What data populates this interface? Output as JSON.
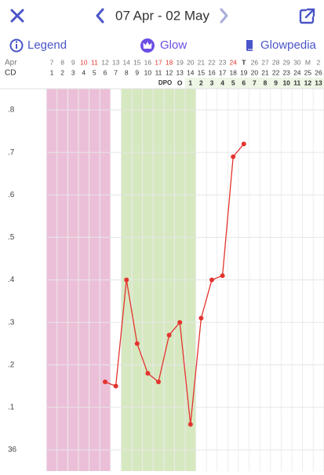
{
  "header": {
    "date_range": "07 Apr - 02 May"
  },
  "tabs": [
    "Legend",
    "Glow",
    "Glowpedia"
  ],
  "chart_data": {
    "type": "line",
    "month_label": "Apr",
    "cycle_day_label": "CD",
    "dpo_label": "DPO",
    "categories": [
      "7",
      "8",
      "9",
      "10",
      "11",
      "12",
      "13",
      "14",
      "15",
      "16",
      "17",
      "18",
      "19",
      "20",
      "21",
      "22",
      "23",
      "24",
      "T",
      "26",
      "27",
      "28",
      "29",
      "30",
      "M",
      "2"
    ],
    "category_colors": [
      "#777",
      "#777",
      "#777",
      "#e03a2f",
      "#e03a2f",
      "#777",
      "#777",
      "#777",
      "#777",
      "#777",
      "#e03a2f",
      "#e03a2f",
      "#777",
      "#777",
      "#777",
      "#777",
      "#777",
      "#e03a2f",
      "#333",
      "#777",
      "#777",
      "#777",
      "#777",
      "#777",
      "#777",
      "#777"
    ],
    "today_index": 18,
    "cycle_days": [
      1,
      2,
      3,
      4,
      5,
      6,
      7,
      8,
      9,
      10,
      11,
      12,
      13,
      14,
      15,
      16,
      17,
      18,
      19,
      20,
      21,
      22,
      23,
      24,
      25,
      26
    ],
    "dpo": [
      null,
      null,
      null,
      null,
      null,
      null,
      null,
      null,
      null,
      null,
      null,
      null,
      "O",
      1,
      2,
      3,
      4,
      5,
      6,
      7,
      8,
      9,
      10,
      11,
      12,
      13
    ],
    "series": [
      {
        "color": "#e3342f",
        "values": [
          null,
          null,
          null,
          null,
          null,
          36.16,
          36.15,
          36.4,
          36.25,
          36.18,
          36.16,
          36.27,
          36.3,
          36.06,
          36.31,
          36.4,
          36.41,
          36.69,
          36.72,
          null,
          null,
          null,
          null,
          null,
          null,
          null
        ]
      }
    ],
    "bands": [
      {
        "from": 1,
        "to": 6,
        "color": "#ecbfd8"
      },
      {
        "from": 8,
        "to": 14,
        "color": "#d6e8c0"
      }
    ],
    "ylim": [
      35.95,
      36.85
    ],
    "yticks": [
      {
        "value": 36.8,
        "label": ".8"
      },
      {
        "value": 36.7,
        "label": ".7"
      },
      {
        "value": 36.6,
        "label": ".6"
      },
      {
        "value": 36.5,
        "label": ".5"
      },
      {
        "value": 36.4,
        "label": ".4"
      },
      {
        "value": 36.3,
        "label": ".3"
      },
      {
        "value": 36.2,
        "label": ".2"
      },
      {
        "value": 36.1,
        "label": ".1"
      },
      36
    ],
    "grid": true
  }
}
